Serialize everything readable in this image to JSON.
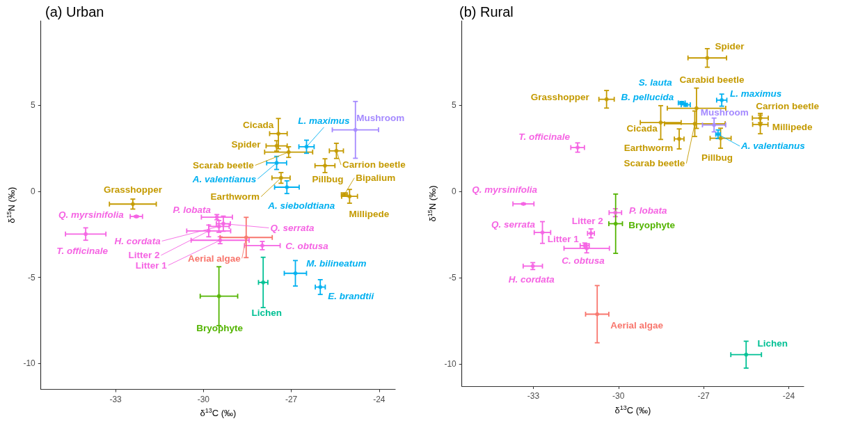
{
  "chart_data": [
    {
      "type": "scatter",
      "title": "(a) Urban",
      "xlabel": "δ$^{13}$C (‰)",
      "ylabel": "δ$^{15}$N (‰)",
      "xlim": [
        -35.55,
        -23.45
      ],
      "ylim": [
        -11.5,
        9.9
      ],
      "xticks": [
        -33,
        -30,
        -27,
        -24
      ],
      "yticks": [
        -10,
        -5,
        0,
        5
      ],
      "marker": "circle",
      "series": [
        {
          "color": "#c49a00",
          "x": [
            -27.44,
            -27.5,
            -27.09,
            -25.46,
            -25.85,
            -27.35,
            -25.01,
            -25.19,
            -32.41
          ],
          "values": [
            3.35,
            2.64,
            2.28,
            2.35,
            1.49,
            0.78,
            -0.29,
            -0.19,
            -0.74
          ],
          "xerrors": [
            0.3,
            0.36,
            0.82,
            0.24,
            0.34,
            0.31,
            0.27,
            0.1,
            0.8
          ],
          "errors": [
            0.88,
            0.3,
            0.31,
            0.44,
            0.4,
            0.31,
            0.4,
            0.1,
            0.29
          ]
        },
        {
          "color": "#00b0f0",
          "x": [
            -26.48,
            -27.5,
            -27.15,
            -26.86,
            -26.01
          ],
          "values": [
            2.59,
            1.65,
            0.24,
            -4.76,
            -5.56
          ],
          "xerrors": [
            0.26,
            0.34,
            0.42,
            0.38,
            0.17
          ],
          "errors": [
            0.38,
            0.38,
            0.37,
            0.74,
            0.43
          ]
        },
        {
          "color": "#a58aff",
          "x": [
            -24.81
          ],
          "values": [
            3.57
          ],
          "xerrors": [
            0.79
          ],
          "errors": [
            1.65
          ]
        },
        {
          "color": "#f564e3",
          "x": [
            -32.29,
            -34.02,
            -29.54,
            -29.32,
            -29.47,
            -29.82,
            -29.43,
            -27.99
          ],
          "values": [
            -1.46,
            -2.48,
            -1.5,
            -1.88,
            -2.04,
            -2.3,
            -2.84,
            -3.15
          ],
          "xerrors": [
            0.21,
            0.69,
            0.53,
            0.24,
            0.35,
            0.75,
            0.99,
            0.61
          ],
          "errors": [
            0.05,
            0.36,
            0.15,
            0.44,
            0.34,
            0.34,
            0.2,
            0.24
          ]
        },
        {
          "color": "#f8766d",
          "x": [
            -28.54
          ],
          "values": [
            -2.68
          ],
          "xerrors": [
            0.89
          ],
          "errors": [
            1.17
          ]
        },
        {
          "color": "#00c094",
          "x": [
            -27.96
          ],
          "values": [
            -5.29
          ],
          "xerrors": [
            0.16
          ],
          "errors": [
            1.46
          ]
        },
        {
          "color": "#53b400",
          "x": [
            -29.47
          ],
          "values": [
            -6.09
          ],
          "xerrors": [
            0.64
          ],
          "errors": [
            1.71
          ]
        }
      ],
      "annotations": [
        {
          "text": "Cicada",
          "x": -27.44,
          "y": 3.35
        },
        {
          "text": "Spider",
          "x": -27.5,
          "y": 2.64
        },
        {
          "text": "Scarab beetle",
          "x": -27.09,
          "y": 2.28
        },
        {
          "text": "L. maximus",
          "x": -26.48,
          "y": 2.59
        },
        {
          "text": "Mushroom",
          "x": -24.81,
          "y": 3.57
        },
        {
          "text": "A. valentianus",
          "x": -27.5,
          "y": 1.65
        },
        {
          "text": "Carrion beetle",
          "x": -25.46,
          "y": 2.35
        },
        {
          "text": "Pillbug",
          "x": -25.85,
          "y": 1.49
        },
        {
          "text": "Bipalium",
          "x": -25.19,
          "y": -0.19
        },
        {
          "text": "Earthworm",
          "x": -27.35,
          "y": 0.78
        },
        {
          "text": "A. sieboldtiana",
          "x": -27.15,
          "y": 0.24
        },
        {
          "text": "Millipede",
          "x": -25.01,
          "y": -0.29
        },
        {
          "text": "Grasshopper",
          "x": -32.41,
          "y": -0.74
        },
        {
          "text": "Q. myrsinifolia",
          "x": -32.29,
          "y": -1.46
        },
        {
          "text": "T. officinale",
          "x": -34.02,
          "y": -2.48
        },
        {
          "text": "P. lobata",
          "x": -29.54,
          "y": -1.5
        },
        {
          "text": "Q. serrata",
          "x": -29.32,
          "y": -1.88
        },
        {
          "text": "H. cordata",
          "x": -29.47,
          "y": -2.04
        },
        {
          "text": "Litter 2",
          "x": -29.82,
          "y": -2.3
        },
        {
          "text": "Litter 1",
          "x": -29.43,
          "y": -2.84
        },
        {
          "text": "Aerial algae",
          "x": -28.54,
          "y": -2.68
        },
        {
          "text": "C. obtusa",
          "x": -27.99,
          "y": -3.15
        },
        {
          "text": "M. bilineatum",
          "x": -26.86,
          "y": -4.76
        },
        {
          "text": "E. brandtii",
          "x": -26.01,
          "y": -5.56
        },
        {
          "text": "Lichen",
          "x": -27.96,
          "y": -5.29
        },
        {
          "text": "Bryophyte",
          "x": -29.47,
          "y": -6.09
        }
      ]
    },
    {
      "type": "scatter",
      "title": "(b) Rural",
      "xlabel": "δ$^{13}$C (‰)",
      "ylabel": "δ$^{15}$N (‰)",
      "xlim": [
        -35.52,
        -23.47
      ],
      "ylim": [
        -11.3,
        9.9
      ],
      "xticks": [
        -33,
        -30,
        -27,
        -24
      ],
      "yticks": [
        -10,
        -5,
        0,
        5
      ],
      "marker": "circle",
      "series": [
        {
          "color": "#c49a00",
          "x": [
            -26.87,
            -30.42,
            -27.25,
            -27.31,
            -28.51,
            -27.86,
            -26.4,
            -25.0,
            -25.0
          ],
          "values": [
            7.75,
            5.35,
            4.83,
            3.93,
            4.0,
            3.05,
            3.09,
            4.26,
            3.89
          ],
          "xerrors": [
            0.68,
            0.27,
            1.03,
            1.07,
            0.72,
            0.17,
            0.37,
            0.28,
            0.27
          ],
          "errors": [
            0.54,
            0.51,
            1.17,
            0.74,
            0.98,
            0.58,
            0.58,
            0.27,
            0.54
          ]
        },
        {
          "color": "#00b0f0",
          "x": [
            -26.36,
            -27.77,
            -27.63,
            -26.49
          ],
          "values": [
            5.3,
            5.14,
            5.03,
            3.32
          ],
          "xerrors": [
            0.18,
            0.12,
            0.16,
            0.08
          ],
          "errors": [
            0.35,
            0.08,
            0.08,
            0.25
          ]
        },
        {
          "color": "#a58aff",
          "x": [
            -26.63
          ],
          "values": [
            3.86
          ],
          "xerrors": [
            0.41
          ],
          "errors": [
            0.4
          ]
        },
        {
          "color": "#f564e3",
          "x": [
            -31.44,
            -33.35,
            -30.11,
            -32.68,
            -30.97,
            -31.19,
            -31.12,
            -33.02
          ],
          "values": [
            2.55,
            -0.72,
            -1.23,
            -2.38,
            -2.43,
            -3.14,
            -3.3,
            -4.33
          ],
          "xerrors": [
            0.24,
            0.37,
            0.22,
            0.29,
            0.12,
            0.16,
            0.8,
            0.34
          ],
          "errors": [
            0.27,
            0.04,
            0.23,
            0.63,
            0.26,
            0.15,
            0.26,
            0.2
          ]
        },
        {
          "color": "#f8766d",
          "x": [
            -30.75
          ],
          "values": [
            -7.12
          ],
          "xerrors": [
            0.41
          ],
          "errors": [
            1.66
          ]
        },
        {
          "color": "#00c094",
          "x": [
            -25.5
          ],
          "values": [
            -9.47
          ],
          "xerrors": [
            0.54
          ],
          "errors": [
            0.78
          ]
        },
        {
          "color": "#53b400",
          "x": [
            -30.1
          ],
          "values": [
            -1.87
          ],
          "xerrors": [
            0.24
          ],
          "errors": [
            1.72
          ]
        }
      ],
      "annotations": [
        {
          "text": "Spider",
          "x": -26.87,
          "y": 7.75
        },
        {
          "text": "Carabid beetle",
          "x": -27.25,
          "y": 4.83
        },
        {
          "text": "S. lauta",
          "x": -27.77,
          "y": 5.14
        },
        {
          "text": "B. pellucida",
          "x": -27.63,
          "y": 5.03
        },
        {
          "text": "L. maximus",
          "x": -26.36,
          "y": 5.3
        },
        {
          "text": "Grasshopper",
          "x": -30.42,
          "y": 5.35
        },
        {
          "text": "Mushroom",
          "x": -26.63,
          "y": 3.86
        },
        {
          "text": "Carrion beetle",
          "x": -25.0,
          "y": 4.26
        },
        {
          "text": "Millipede",
          "x": -25.0,
          "y": 3.89
        },
        {
          "text": "Cicada",
          "x": -28.51,
          "y": 4.0
        },
        {
          "text": "Earthworm",
          "x": -27.86,
          "y": 3.05
        },
        {
          "text": "Scarab beetle",
          "x": -27.31,
          "y": 3.93
        },
        {
          "text": "Pillbug",
          "x": -26.4,
          "y": 3.09
        },
        {
          "text": "A. valentianus",
          "x": -26.49,
          "y": 3.32
        },
        {
          "text": "T. officinale",
          "x": -31.44,
          "y": 2.55
        },
        {
          "text": "Q. myrsinifolia",
          "x": -33.35,
          "y": -0.72
        },
        {
          "text": "P. lobata",
          "x": -30.11,
          "y": -1.23
        },
        {
          "text": "Bryophyte",
          "x": -30.1,
          "y": -1.87
        },
        {
          "text": "Q. serrata",
          "x": -32.68,
          "y": -2.38
        },
        {
          "text": "Litter 2",
          "x": -30.97,
          "y": -2.43
        },
        {
          "text": "Litter 1",
          "x": -31.19,
          "y": -3.14
        },
        {
          "text": "C. obtusa",
          "x": -31.12,
          "y": -3.3
        },
        {
          "text": "H. cordata",
          "x": -33.02,
          "y": -4.33
        },
        {
          "text": "Aerial algae",
          "x": -30.75,
          "y": -7.12
        },
        {
          "text": "Lichen",
          "x": -25.5,
          "y": -9.47
        }
      ]
    }
  ]
}
